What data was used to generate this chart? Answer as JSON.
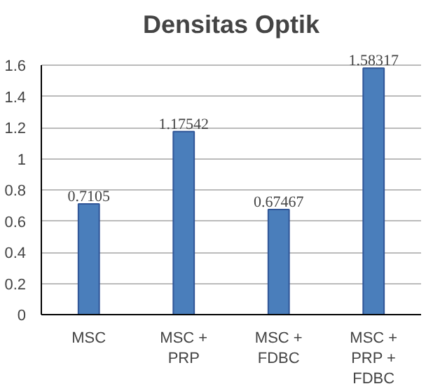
{
  "chart_data": {
    "type": "bar",
    "title": "Densitas Optik",
    "categories": [
      "MSC",
      "MSC + PRP",
      "MSC + FDBC",
      "MSC + PRP + FDBC"
    ],
    "values": [
      0.7105,
      1.17542,
      0.67467,
      1.58317
    ],
    "color": "#4a7ebb",
    "ylim": [
      0,
      1.6
    ],
    "yticks": [
      0,
      0.2,
      0.4,
      0.6,
      0.8,
      1,
      1.2,
      1.4,
      1.6
    ],
    "grid": "y",
    "data_labels": true
  }
}
